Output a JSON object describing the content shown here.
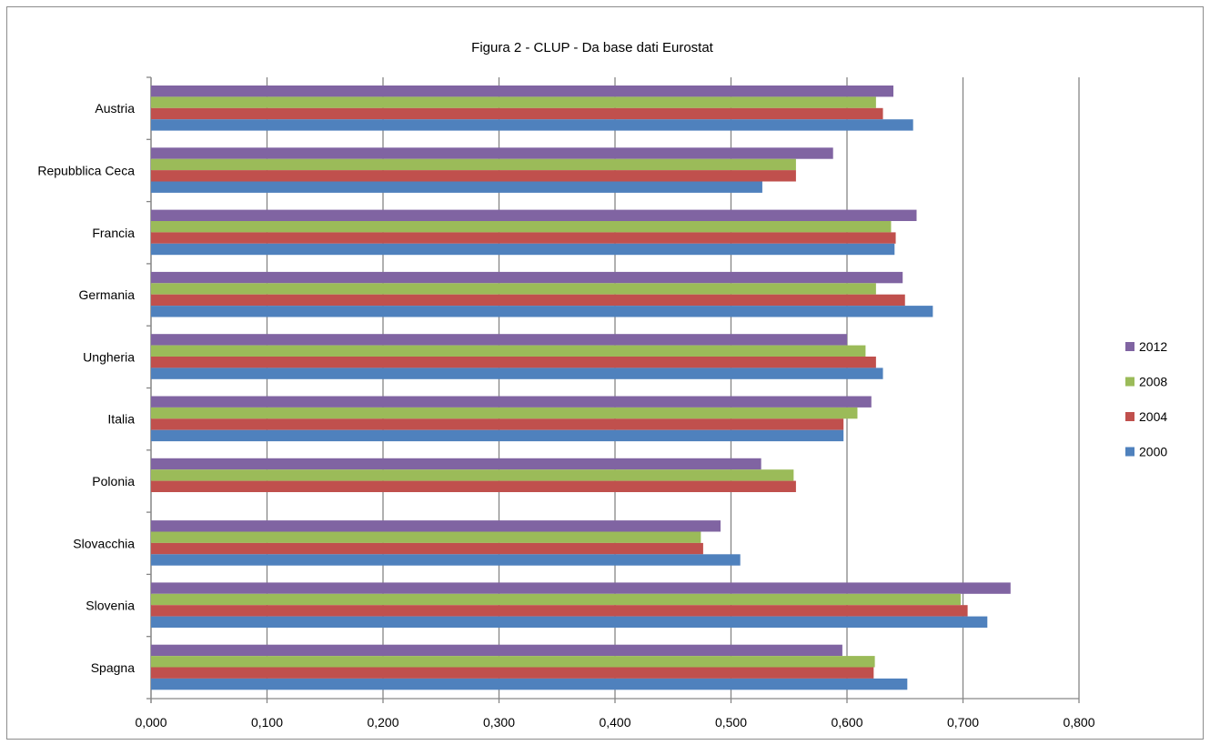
{
  "chart_data": {
    "type": "bar",
    "orientation": "horizontal",
    "title": "Figura 2 -  CLUP - Da base dati Eurostat",
    "xlabel": "",
    "ylabel": "",
    "xlim": [
      0,
      0.8
    ],
    "x_ticks": [
      "0,000",
      "0,100",
      "0,200",
      "0,300",
      "0,400",
      "0,500",
      "0,600",
      "0,700",
      "0,800"
    ],
    "grid": "vertical",
    "legend_position": "right",
    "categories": [
      "Austria",
      "Repubblica Ceca",
      "Francia",
      "Germania",
      "Ungheria",
      "Italia",
      "Polonia",
      "Slovacchia",
      "Slovenia",
      "Spagna"
    ],
    "series": [
      {
        "name": "2012",
        "color": "#8064A2",
        "values": [
          0.64,
          0.588,
          0.66,
          0.648,
          0.6,
          0.621,
          0.526,
          0.491,
          0.741,
          0.596
        ]
      },
      {
        "name": "2008",
        "color": "#9BBB59",
        "values": [
          0.625,
          0.556,
          0.638,
          0.625,
          0.616,
          0.609,
          0.554,
          0.474,
          0.698,
          0.624
        ]
      },
      {
        "name": "2004",
        "color": "#C0504D",
        "values": [
          0.631,
          0.556,
          0.642,
          0.65,
          0.625,
          0.597,
          0.556,
          0.476,
          0.704,
          0.623
        ]
      },
      {
        "name": "2000",
        "color": "#4F81BD",
        "values": [
          0.657,
          0.527,
          0.641,
          0.674,
          0.631,
          0.597,
          null,
          0.508,
          0.721,
          0.652
        ]
      }
    ]
  }
}
